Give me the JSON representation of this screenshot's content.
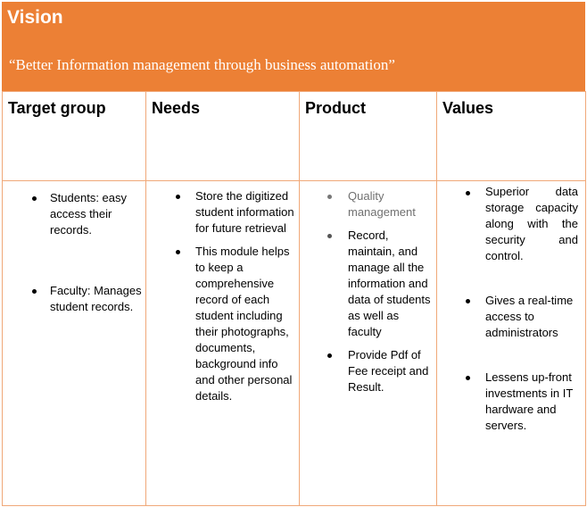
{
  "vision": {
    "title": "Vision",
    "quote": "“Better Information management through business automation”"
  },
  "columns": [
    {
      "header": "Target group",
      "items": [
        {
          "text": "Students: easy access their records."
        },
        {
          "text": "Faculty: Manages student records."
        }
      ]
    },
    {
      "header": "Needs",
      "items": [
        {
          "text": "Store the digitized student information for future retrieval"
        },
        {
          "text": "This module helps to keep a comprehensive record of each student including their photographs, documents, background info and other personal details."
        }
      ]
    },
    {
      "header": "Product",
      "items": [
        {
          "text": "Quality management"
        },
        {
          "text": "Record, maintain, and manage all the information and data of students as well as faculty"
        },
        {
          "text": "Provide Pdf of Fee receipt and Result."
        }
      ]
    },
    {
      "header": "Values",
      "items": [
        {
          "text": "Superior data storage capacity along with the security and control."
        },
        {
          "text": "Gives a real-time access to administrators"
        },
        {
          "text": "Lessens up-front investments in IT hardware and servers."
        }
      ]
    }
  ],
  "colors": {
    "banner": "#ec8035",
    "border": "#f0a878",
    "muted_text": "#707070"
  }
}
